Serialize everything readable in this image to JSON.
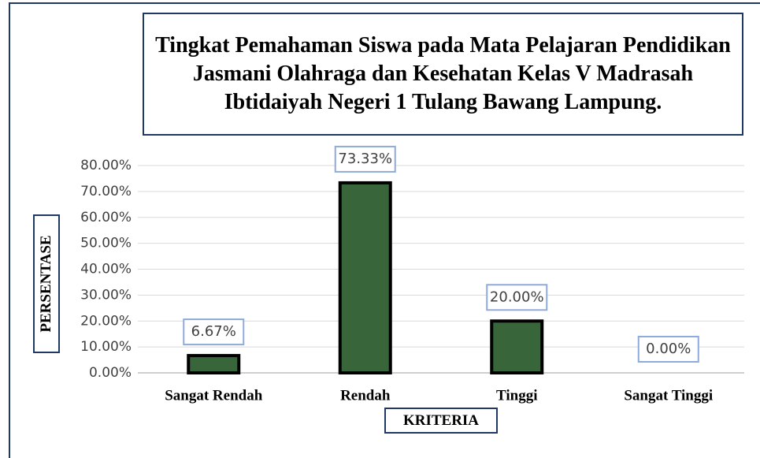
{
  "chart_data": {
    "type": "bar",
    "title": "Tingkat Pemahaman Siswa pada Mata Pelajaran Pendidikan Jasmani Olahraga dan Kesehatan Kelas V Madrasah Ibtidaiyah Negeri 1 Tulang Bawang Lampung.",
    "x_label": "KRITERIA",
    "y_label": "PERSENTASE",
    "categories": [
      "Sangat Rendah",
      "Rendah",
      "Tinggi",
      "Sangat Tinggi"
    ],
    "values": [
      6.67,
      73.33,
      20,
      0
    ],
    "value_labels": [
      "6.67%",
      "73.33%",
      "20.00%",
      "0.00%"
    ],
    "color": "#38663a",
    "ylim": [
      0,
      80
    ],
    "yticks": [
      {
        "value": 0,
        "label": "0.00%"
      },
      {
        "value": 10,
        "label": "10.00%"
      },
      {
        "value": 20,
        "label": "20.00%"
      },
      {
        "value": 30,
        "label": "30.00%"
      },
      {
        "value": 40,
        "label": "40.00%"
      },
      {
        "value": 50,
        "label": "50.00%"
      },
      {
        "value": 60,
        "label": "60.00%"
      },
      {
        "value": 70,
        "label": "70.00%"
      },
      {
        "value": 80,
        "label": "80.00%"
      }
    ],
    "grid": true
  }
}
